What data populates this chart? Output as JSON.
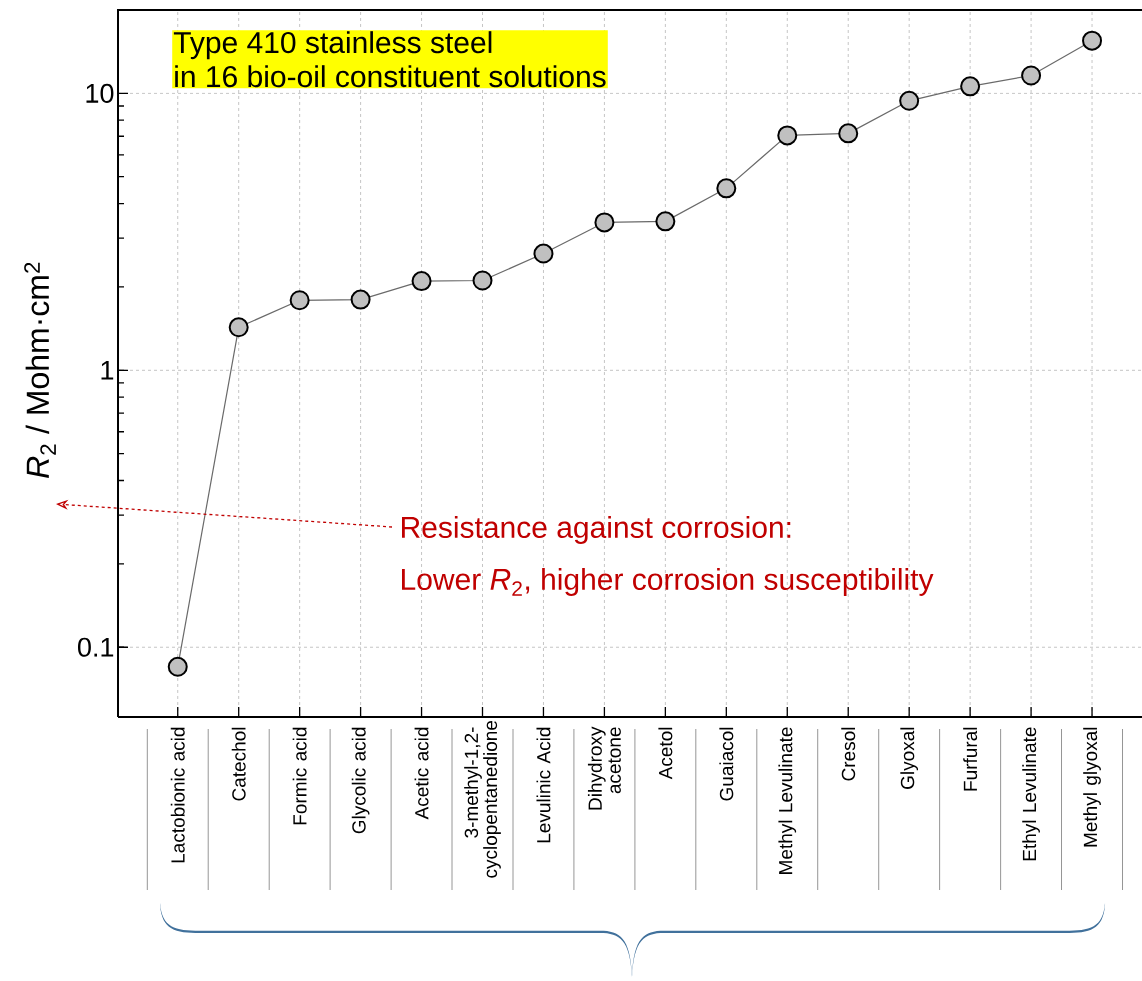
{
  "chart_data": {
    "type": "line",
    "title": "Type 410 stainless steel",
    "subtitle": "in 16 bio-oil constituent solutions",
    "ylabel": "*R*$_{2}$ / Mohm·cm$^{2}$",
    "annotations": [
      "Resistance against corrosion:",
      "Lower *R*$_{2}$, higher corrosion susceptibility"
    ],
    "categories": [
      "Lactobionic acid",
      "Catechol",
      "Formic acid",
      "Glycolic acid",
      "Acetic acid",
      "3-methyl-1,2-cyclopentanedione",
      "Levulinic Acid",
      "Dihydroxy acetone",
      "Acetol",
      "Guaiacol",
      "Methyl Levulinate",
      "Cresol",
      "Glyoxal",
      "Furfural",
      "Ethyl Levulinate",
      "Methyl glyoxal"
    ],
    "series": [
      {
        "color": "#c0c0c0",
        "values": [
          0.085,
          1.43,
          1.79,
          1.8,
          2.1,
          2.11,
          2.64,
          3.42,
          3.45,
          4.54,
          7.05,
          7.17,
          9.4,
          10.6,
          11.6,
          15.5
        ]
      }
    ],
    "ylim": [
      0.056,
      20
    ],
    "yticks": [
      0.1,
      1,
      10
    ],
    "log": "y",
    "grid": true,
    "marker": "circle",
    "line_style": "solid"
  }
}
